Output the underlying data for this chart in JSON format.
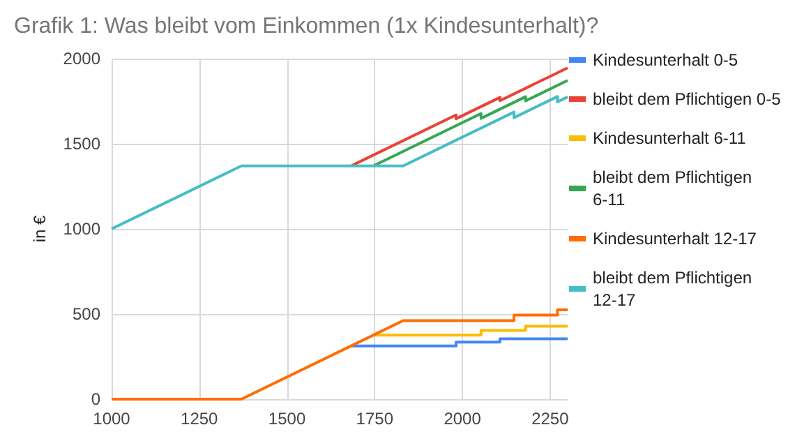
{
  "chart_data": {
    "type": "line",
    "title": "Grafik 1: Was bleibt vom Einkommen (1x Kindesunterhalt)?",
    "ylabel": "in €",
    "xlim": [
      1000,
      2300
    ],
    "xticks": [
      1000,
      1250,
      1500,
      1750,
      2000,
      2250
    ],
    "ylim": [
      0,
      2000
    ],
    "yticks": [
      0,
      500,
      1000,
      1500,
      2000
    ],
    "grid": true,
    "legend": "right",
    "marker": "none",
    "series": [
      {
        "name": "Kindesunterhalt 0-5",
        "color": "#4285f4",
        "x": [
          1683,
          1982,
          1982,
          2107,
          2107,
          2300
        ],
        "values": [
          313,
          313,
          335,
          335,
          354,
          354
        ]
      },
      {
        "name": "bleibt dem Pflichtigen 0-5",
        "color": "#ea4335",
        "x": [
          1683,
          1982,
          1982,
          2107,
          2107,
          2300
        ],
        "values": [
          1370,
          1669,
          1647,
          1772,
          1753,
          1946
        ]
      },
      {
        "name": "Kindesunterhalt 6-11",
        "color": "#fbbc04",
        "x": [
          1746,
          2053,
          2053,
          2180,
          2180,
          2300
        ],
        "values": [
          376,
          376,
          404,
          404,
          428,
          428
        ]
      },
      {
        "name": "bleibt dem Pflichtigen 6-11",
        "color": "#34a853",
        "x": [
          1746,
          2053,
          2053,
          2180,
          2180,
          2300
        ],
        "values": [
          1370,
          1677,
          1649,
          1776,
          1752,
          1872
        ]
      },
      {
        "name": "Kindesunterhalt 12-17",
        "color": "#ff6d01",
        "x": [
          1000,
          1370,
          1831,
          2147,
          2147,
          2271,
          2271,
          2300
        ],
        "values": [
          0,
          0,
          461,
          461,
          494,
          494,
          525,
          525
        ]
      },
      {
        "name": "bleibt dem Pflichtigen 12-17",
        "color": "#46bdc6",
        "x": [
          1000,
          1370,
          1831,
          2147,
          2147,
          2271,
          2271,
          2300
        ],
        "values": [
          1000,
          1370,
          1370,
          1686,
          1653,
          1777,
          1746,
          1775
        ]
      }
    ]
  }
}
